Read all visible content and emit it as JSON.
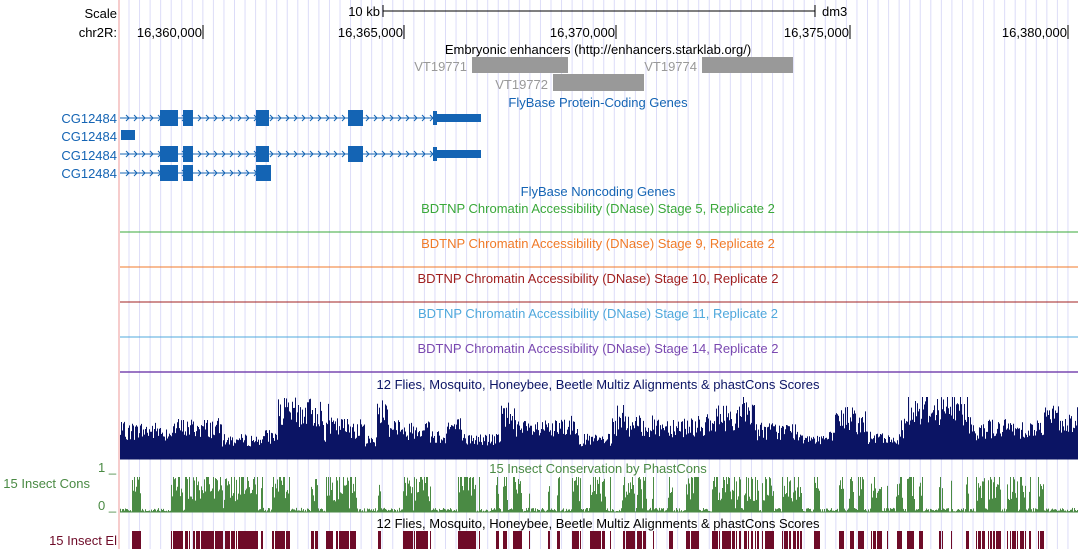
{
  "ruler": {
    "scale_label": "Scale",
    "scale_bar_label": "10 kb",
    "assembly": "dm3",
    "chrom_label": "chr2R:",
    "positions": [
      "16,360,000",
      "16,365,000",
      "16,370,000",
      "16,375,000",
      "16,380,000"
    ]
  },
  "enhancers": {
    "title": "Embryonic enhancers (http://enhancers.starklab.org/)",
    "items": [
      "VT19771",
      "VT19772",
      "VT19774"
    ]
  },
  "protein_genes": {
    "title": "FlyBase Protein-Coding Genes",
    "genes": [
      "CG12484",
      "CG12484",
      "CG12484",
      "CG12484"
    ]
  },
  "noncoding": {
    "title": "FlyBase Noncoding Genes"
  },
  "dnase": [
    {
      "title": "BDTNP Chromatin Accessibility (DNase) Stage 5, Replicate 2",
      "color": "#3aa83a"
    },
    {
      "title": "BDTNP Chromatin Accessibility (DNase) Stage 9, Replicate 2",
      "color": "#f07a28"
    },
    {
      "title": "BDTNP Chromatin Accessibility (DNase) Stage 10, Replicate 2",
      "color": "#a02020"
    },
    {
      "title": "BDTNP Chromatin Accessibility (DNase) Stage 11, Replicate 2",
      "color": "#4fa8dc"
    },
    {
      "title": "BDTNP Chromatin Accessibility (DNase) Stage 14, Replicate 2",
      "color": "#7a48b0"
    }
  ],
  "multiz": {
    "title": "12 Flies, Mosquito, Honeybee, Beetle Multiz Alignments & phastCons Scores",
    "color": "#0b1464"
  },
  "phastcons": {
    "title": "15 Insect Conservation by PhastCons",
    "side_label": "15 Insect Cons",
    "y_max": "1 _",
    "y_min": "0 _",
    "color": "#4a8a44"
  },
  "elements": {
    "title": "12 Flies, Mosquito, Honeybee, Beetle Multiz Alignments & phastCons Scores",
    "side_label": "15 Insect El",
    "color": "#6e0b28"
  },
  "colors": {
    "gene": "#1464b4",
    "grid": "#dcdcf8",
    "enhancer": "#999999"
  }
}
